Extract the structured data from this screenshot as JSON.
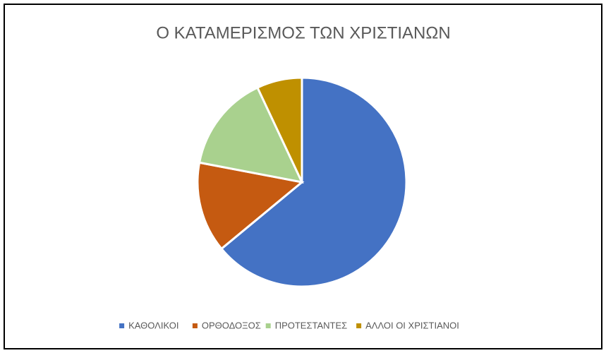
{
  "chart_data": {
    "type": "pie",
    "title": "Ο ΚΑΤΑΜΕΡΙΣΜΟΣ ΤΩΝ ΧΡΙΣΤΙΑΝΩΝ",
    "categories": [
      "ΚΑΘΟΛΙΚΟΙ",
      "ΟΡΘΟΔΟΞΟΣ",
      "ΠΡΟΤΕΣΤΑΝΤΕΣ",
      "ΑΛΛΟΙ ΟΙ ΧΡΙΣΤΙΑΝΟΙ"
    ],
    "values": [
      64,
      14,
      15,
      7
    ],
    "colors": [
      "#4472c4",
      "#c55a11",
      "#a9d18e",
      "#bf9000"
    ],
    "legend": "bottom"
  }
}
